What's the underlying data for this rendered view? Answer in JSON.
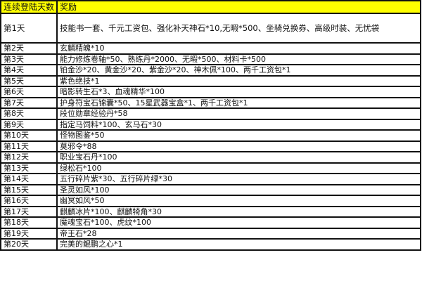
{
  "header": {
    "day_col": "连续登陆天数",
    "reward_col": "奖励",
    "header_color": "#ffff00"
  },
  "rows": [
    {
      "day": "第1天",
      "reward": "技能书一套、千元工资包、强化补天神石*10,无暇*500、坐骑兑换券、高级时装、无忧袋"
    },
    {
      "day": "第2天",
      "reward": "玄麟精魄*10"
    },
    {
      "day": "第3天",
      "reward": "能力修炼卷轴*50、熟练丹*2000、无暇*500、材料卡*500"
    },
    {
      "day": "第4天",
      "reward": "铂金沙*20、黄金沙*20、紫金沙*20、神木佩*100、两千工资包*1"
    },
    {
      "day": "第5天",
      "reward": "紫色绝技*1"
    },
    {
      "day": "第6天",
      "reward": "暗影转生石*3、血魂精华*100"
    },
    {
      "day": "第7天",
      "reward": "护身符宝石锦囊*50、15星武器宝盒*1、两千工资包*1"
    },
    {
      "day": "第8天",
      "reward": "段位勋章经验丹*58"
    },
    {
      "day": "第9天",
      "reward": "指定马饲料*100、玄马石*30"
    },
    {
      "day": "第10天",
      "reward": "怪物图鉴*50"
    },
    {
      "day": "第11天",
      "reward": "莫邪令*88"
    },
    {
      "day": "第12天",
      "reward": "职业宝石丹*100"
    },
    {
      "day": "第13天",
      "reward": "绿松石*100"
    },
    {
      "day": "第14天",
      "reward": "五行碎片紫*30、五行碎片绿*30"
    },
    {
      "day": "第15天",
      "reward": "圣灵如风*100"
    },
    {
      "day": "第16天",
      "reward": "幽冥如风*50"
    },
    {
      "day": "第17天",
      "reward": "麒麟冰片*100、麒麟犄角*30"
    },
    {
      "day": "第18天",
      "reward": "魔魂宝石*100、虎纹*100"
    },
    {
      "day": "第19天",
      "reward": "帝王石*28"
    },
    {
      "day": "第20天",
      "reward": "完美的鲲鹏之心*1"
    }
  ]
}
